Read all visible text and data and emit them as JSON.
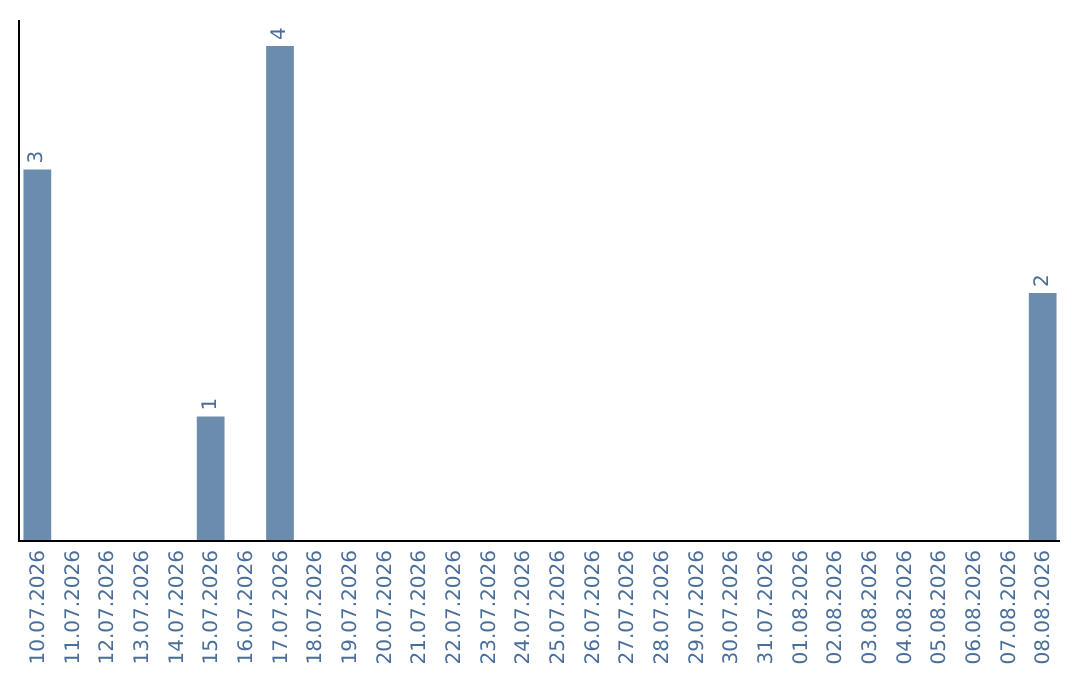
{
  "chart_data": {
    "type": "bar",
    "categories": [
      "10.07.2026",
      "11.07.2026",
      "12.07.2026",
      "13.07.2026",
      "14.07.2026",
      "15.07.2026",
      "16.07.2026",
      "17.07.2026",
      "18.07.2026",
      "19.07.2026",
      "20.07.2026",
      "21.07.2026",
      "22.07.2026",
      "23.07.2026",
      "24.07.2026",
      "25.07.2026",
      "26.07.2026",
      "27.07.2026",
      "28.07.2026",
      "29.07.2026",
      "30.07.2026",
      "31.07.2026",
      "01.08.2026",
      "02.08.2026",
      "03.08.2026",
      "04.08.2026",
      "05.08.2026",
      "06.08.2026",
      "07.08.2026",
      "08.08.2026"
    ],
    "values": [
      3,
      0,
      0,
      0,
      0,
      1,
      0,
      4,
      0,
      0,
      0,
      0,
      0,
      0,
      0,
      0,
      0,
      0,
      0,
      0,
      0,
      0,
      0,
      0,
      0,
      0,
      0,
      0,
      0,
      2
    ],
    "value_labels": [
      "3",
      null,
      null,
      null,
      null,
      "1",
      null,
      "4",
      null,
      null,
      null,
      null,
      null,
      null,
      null,
      null,
      null,
      null,
      null,
      null,
      null,
      null,
      null,
      null,
      null,
      null,
      null,
      null,
      null,
      "2"
    ],
    "color": "#6b8cad",
    "tick_labels": "x",
    "legend": false
  }
}
